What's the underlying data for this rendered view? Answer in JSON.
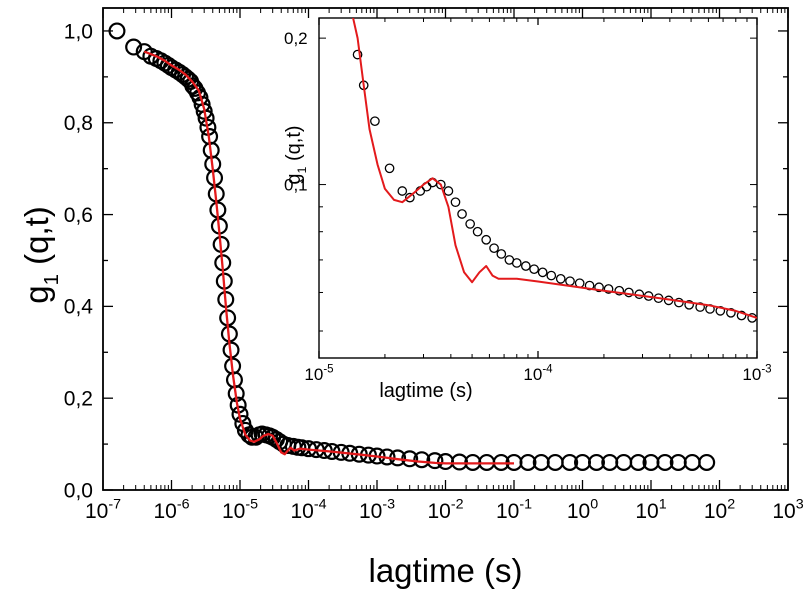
{
  "chart_data": [
    {
      "id": "main",
      "type": "scatter",
      "xscale": "log",
      "xlim": [
        1e-07,
        1000
      ],
      "ylim": [
        0.0,
        1.05
      ],
      "xlabel": "lagtime (s)",
      "ylabel": {
        "main": "g",
        "sub": "1",
        "rest": " (q,t)"
      },
      "x_ticks": [
        {
          "value": 1e-07,
          "base": "10",
          "exp": "-7"
        },
        {
          "value": 1e-06,
          "base": "10",
          "exp": "-6"
        },
        {
          "value": 1e-05,
          "base": "10",
          "exp": "-5"
        },
        {
          "value": 0.0001,
          "base": "10",
          "exp": "-4"
        },
        {
          "value": 0.001,
          "base": "10",
          "exp": "-3"
        },
        {
          "value": 0.01,
          "base": "10",
          "exp": "-2"
        },
        {
          "value": 0.1,
          "base": "10",
          "exp": "-1"
        },
        {
          "value": 1,
          "base": "10",
          "exp": "0"
        },
        {
          "value": 10,
          "base": "10",
          "exp": "1"
        },
        {
          "value": 100,
          "base": "10",
          "exp": "2"
        },
        {
          "value": 1000,
          "base": "10",
          "exp": "3"
        }
      ],
      "y_ticks": [
        {
          "value": 0.0,
          "label": "0,0"
        },
        {
          "value": 0.2,
          "label": "0,2"
        },
        {
          "value": 0.4,
          "label": "0,4"
        },
        {
          "value": 0.6,
          "label": "0,6"
        },
        {
          "value": 0.8,
          "label": "0,8"
        },
        {
          "value": 1.0,
          "label": "1,0"
        }
      ],
      "grid": false,
      "series": [
        {
          "kind": "markers",
          "marker": "open-circle",
          "color": "#000000",
          "points": [
            [
              1.6e-07,
              1.0
            ],
            [
              2.8e-07,
              0.965
            ],
            [
              4e-07,
              0.955
            ],
            [
              5e-07,
              0.945
            ],
            [
              6e-07,
              0.94
            ],
            [
              7e-07,
              0.935
            ],
            [
              8e-07,
              0.93
            ],
            [
              9e-07,
              0.925
            ],
            [
              1e-06,
              0.92
            ],
            [
              1.15e-06,
              0.915
            ],
            [
              1.3e-06,
              0.91
            ],
            [
              1.45e-06,
              0.905
            ],
            [
              1.6e-06,
              0.9
            ],
            [
              1.75e-06,
              0.895
            ],
            [
              1.9e-06,
              0.89
            ],
            [
              2.05e-06,
              0.88
            ],
            [
              2.2e-06,
              0.875
            ],
            [
              2.4e-06,
              0.865
            ],
            [
              2.6e-06,
              0.855
            ],
            [
              2.8e-06,
              0.84
            ],
            [
              3e-06,
              0.825
            ],
            [
              3.2e-06,
              0.81
            ],
            [
              3.4e-06,
              0.79
            ],
            [
              3.6e-06,
              0.77
            ],
            [
              3.8e-06,
              0.74
            ],
            [
              4e-06,
              0.71
            ],
            [
              4.25e-06,
              0.68
            ],
            [
              4.5e-06,
              0.645
            ],
            [
              4.75e-06,
              0.61
            ],
            [
              5e-06,
              0.575
            ],
            [
              5.3e-06,
              0.535
            ],
            [
              5.6e-06,
              0.495
            ],
            [
              5.9e-06,
              0.455
            ],
            [
              6.2e-06,
              0.415
            ],
            [
              6.6e-06,
              0.375
            ],
            [
              7e-06,
              0.34
            ],
            [
              7.4e-06,
              0.305
            ],
            [
              7.8e-06,
              0.27
            ],
            [
              8.3e-06,
              0.24
            ],
            [
              8.8e-06,
              0.21
            ],
            [
              9.4e-06,
              0.185
            ],
            [
              1e-05,
              0.165
            ],
            [
              1.1e-05,
              0.145
            ],
            [
              1.2e-05,
              0.13
            ],
            [
              1.35e-05,
              0.12
            ],
            [
              1.5e-05,
              0.115
            ],
            [
              1.7e-05,
              0.115
            ],
            [
              1.9e-05,
              0.12
            ],
            [
              2.1e-05,
              0.122
            ],
            [
              2.4e-05,
              0.12
            ],
            [
              2.7e-05,
              0.118
            ],
            [
              3e-05,
              0.115
            ],
            [
              3.4e-05,
              0.11
            ],
            [
              3.8e-05,
              0.105
            ],
            [
              4.3e-05,
              0.1
            ],
            [
              5e-05,
              0.097
            ],
            [
              6e-05,
              0.095
            ],
            [
              7e-05,
              0.093
            ],
            [
              8e-05,
              0.092
            ],
            [
              0.0001,
              0.09
            ],
            [
              0.00013,
              0.088
            ],
            [
              0.00017,
              0.086
            ],
            [
              0.00022,
              0.084
            ],
            [
              0.0003,
              0.082
            ],
            [
              0.0004,
              0.08
            ],
            [
              0.00055,
              0.078
            ],
            [
              0.00075,
              0.076
            ],
            [
              0.001,
              0.074
            ],
            [
              0.0014,
              0.072
            ],
            [
              0.002,
              0.07
            ],
            [
              0.003,
              0.068
            ],
            [
              0.0045,
              0.066
            ],
            [
              0.007,
              0.064
            ],
            [
              0.01,
              0.062
            ],
            [
              0.016,
              0.061
            ],
            [
              0.025,
              0.06
            ],
            [
              0.04,
              0.06
            ],
            [
              0.065,
              0.06
            ],
            [
              0.1,
              0.06
            ],
            [
              0.16,
              0.06
            ],
            [
              0.25,
              0.06
            ],
            [
              0.4,
              0.06
            ],
            [
              0.65,
              0.06
            ],
            [
              1,
              0.06
            ],
            [
              1.6,
              0.06
            ],
            [
              2.5,
              0.06
            ],
            [
              4,
              0.06
            ],
            [
              6.5,
              0.06
            ],
            [
              10,
              0.06
            ],
            [
              16,
              0.06
            ],
            [
              25,
              0.06
            ],
            [
              40,
              0.06
            ],
            [
              65,
              0.06
            ]
          ]
        },
        {
          "kind": "line",
          "color": "#e31a1c",
          "points": [
            [
              4e-07,
              0.955
            ],
            [
              6e-07,
              0.945
            ],
            [
              8e-07,
              0.935
            ],
            [
              1e-06,
              0.925
            ],
            [
              1.3e-06,
              0.915
            ],
            [
              1.6e-06,
              0.905
            ],
            [
              2e-06,
              0.89
            ],
            [
              2.5e-06,
              0.87
            ],
            [
              3e-06,
              0.83
            ],
            [
              3.5e-06,
              0.77
            ],
            [
              4e-06,
              0.7
            ],
            [
              4.5e-06,
              0.63
            ],
            [
              5e-06,
              0.56
            ],
            [
              5.6e-06,
              0.48
            ],
            [
              6.3e-06,
              0.39
            ],
            [
              7e-06,
              0.32
            ],
            [
              7.9e-06,
              0.25
            ],
            [
              9e-06,
              0.19
            ],
            [
              1e-05,
              0.155
            ],
            [
              1.2e-05,
              0.12
            ],
            [
              1.4e-05,
              0.108
            ],
            [
              1.6e-05,
              0.105
            ],
            [
              1.9e-05,
              0.11
            ],
            [
              2.2e-05,
              0.118
            ],
            [
              2.6e-05,
              0.122
            ],
            [
              3e-05,
              0.118
            ],
            [
              3.5e-05,
              0.1
            ],
            [
              4e-05,
              0.082
            ],
            [
              4.5e-05,
              0.078
            ],
            [
              5e-05,
              0.086
            ],
            [
              5.5e-05,
              0.092
            ],
            [
              6.2e-05,
              0.086
            ],
            [
              7.5e-05,
              0.09
            ],
            [
              0.0001,
              0.088
            ],
            [
              0.0002,
              0.084
            ],
            [
              0.0005,
              0.078
            ],
            [
              0.001,
              0.073
            ],
            [
              0.002,
              0.067
            ],
            [
              0.004,
              0.062
            ],
            [
              0.007,
              0.059
            ],
            [
              0.01,
              0.058
            ],
            [
              0.03,
              0.058
            ],
            [
              0.1,
              0.058
            ]
          ]
        }
      ]
    },
    {
      "id": "inset",
      "type": "scatter",
      "xscale": "log",
      "yscale": "log",
      "xlim": [
        1e-05,
        0.001
      ],
      "ylim": [
        0.044,
        0.22
      ],
      "xlabel": "lagtime (s)",
      "ylabel": {
        "main": "g",
        "sub": "1",
        "rest": " (q,t)"
      },
      "x_ticks": [
        {
          "value": 1e-05,
          "base": "10",
          "exp": "-5"
        },
        {
          "value": 0.0001,
          "base": "10",
          "exp": "-4"
        },
        {
          "value": 0.001,
          "base": "10",
          "exp": "-3"
        }
      ],
      "y_ticks": [
        {
          "value": 0.1,
          "label": "0,1"
        },
        {
          "value": 0.2,
          "label": "0,2"
        }
      ],
      "grid": false,
      "series": [
        {
          "kind": "markers",
          "marker": "open-circle",
          "color": "#000000",
          "points": [
            [
              1.5e-05,
              0.185
            ],
            [
              1.6e-05,
              0.16
            ],
            [
              1.8e-05,
              0.135
            ],
            [
              2.1e-05,
              0.108
            ],
            [
              2.4e-05,
              0.097
            ],
            [
              2.6e-05,
              0.094
            ],
            [
              2.9e-05,
              0.097
            ],
            [
              3.1e-05,
              0.099
            ],
            [
              3.3e-05,
              0.101
            ],
            [
              3.6e-05,
              0.1
            ],
            [
              3.9e-05,
              0.097
            ],
            [
              4.2e-05,
              0.092
            ],
            [
              4.5e-05,
              0.087
            ],
            [
              4.9e-05,
              0.083
            ],
            [
              5.3e-05,
              0.08
            ],
            [
              5.8e-05,
              0.077
            ],
            [
              6.3e-05,
              0.074
            ],
            [
              6.8e-05,
              0.072
            ],
            [
              7.4e-05,
              0.07
            ],
            [
              8e-05,
              0.069
            ],
            [
              8.8e-05,
              0.068
            ],
            [
              9.6e-05,
              0.067
            ],
            [
              0.000105,
              0.066
            ],
            [
              0.000115,
              0.065
            ],
            [
              0.000127,
              0.064
            ],
            [
              0.00014,
              0.0633
            ],
            [
              0.000155,
              0.0627
            ],
            [
              0.000172,
              0.062
            ],
            [
              0.00019,
              0.0615
            ],
            [
              0.00021,
              0.061
            ],
            [
              0.000235,
              0.0605
            ],
            [
              0.00026,
              0.06
            ],
            [
              0.00029,
              0.0595
            ],
            [
              0.00032,
              0.059
            ],
            [
              0.000355,
              0.0584
            ],
            [
              0.000395,
              0.0578
            ],
            [
              0.00044,
              0.0572
            ],
            [
              0.00049,
              0.0566
            ],
            [
              0.00055,
              0.056
            ],
            [
              0.00061,
              0.0555
            ],
            [
              0.00068,
              0.055
            ],
            [
              0.00076,
              0.0545
            ],
            [
              0.00085,
              0.0538
            ],
            [
              0.00095,
              0.0532
            ]
          ]
        },
        {
          "kind": "line",
          "color": "#e31a1c",
          "points": [
            [
              1.4e-05,
              0.23
            ],
            [
              1.5e-05,
              0.2
            ],
            [
              1.6e-05,
              0.16
            ],
            [
              1.7e-05,
              0.13
            ],
            [
              1.85e-05,
              0.11
            ],
            [
              2e-05,
              0.098
            ],
            [
              2.2e-05,
              0.093
            ],
            [
              2.4e-05,
              0.092
            ],
            [
              2.7e-05,
              0.096
            ],
            [
              3e-05,
              0.1
            ],
            [
              3.3e-05,
              0.103
            ],
            [
              3.6e-05,
              0.1
            ],
            [
              3.9e-05,
              0.09
            ],
            [
              4.2e-05,
              0.075
            ],
            [
              4.6e-05,
              0.066
            ],
            [
              5e-05,
              0.063
            ],
            [
              5.4e-05,
              0.066
            ],
            [
              5.8e-05,
              0.068
            ],
            [
              6.2e-05,
              0.065
            ],
            [
              6.6e-05,
              0.064
            ],
            [
              8e-05,
              0.064
            ],
            [
              0.0001,
              0.0632
            ],
            [
              0.0002,
              0.0605
            ],
            [
              0.0004,
              0.058
            ],
            [
              0.0006,
              0.0565
            ],
            [
              0.0008,
              0.055
            ],
            [
              0.001,
              0.0532
            ]
          ]
        }
      ]
    }
  ]
}
